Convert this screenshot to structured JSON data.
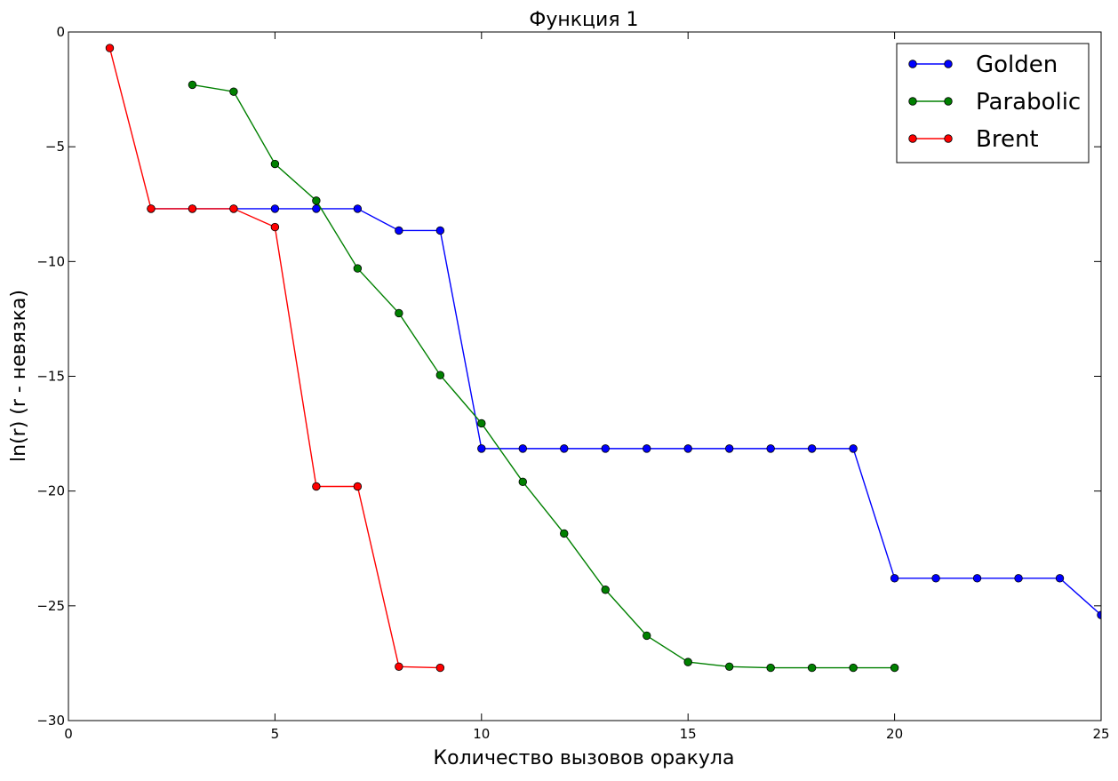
{
  "chart_data": {
    "type": "line",
    "title": "Функция 1",
    "xlabel": "Количество вызовов оракула",
    "ylabel": "ln(r) (r - невязка)",
    "xlim": [
      0,
      25
    ],
    "ylim": [
      -30,
      0
    ],
    "xticks": [
      0,
      5,
      10,
      15,
      20,
      25
    ],
    "yticks": [
      0,
      -5,
      -10,
      -15,
      -20,
      -25,
      -30
    ],
    "xtick_labels": [
      "0",
      "5",
      "10",
      "15",
      "20",
      "25"
    ],
    "ytick_labels": [
      "0",
      "−5",
      "−10",
      "−15",
      "−20",
      "−25",
      "−30"
    ],
    "grid": false,
    "legend_position": "top-right",
    "series": [
      {
        "name": "Golden",
        "color": "#0000ff",
        "marker": "circle",
        "x": [
          2,
          3,
          4,
          5,
          6,
          7,
          8,
          9,
          10,
          11,
          12,
          13,
          14,
          15,
          16,
          17,
          18,
          19,
          20,
          21,
          22,
          23,
          24,
          25
        ],
        "y": [
          -7.7,
          -7.7,
          -7.7,
          -7.7,
          -7.7,
          -7.7,
          -8.65,
          -8.65,
          -18.15,
          -18.15,
          -18.15,
          -18.15,
          -18.15,
          -18.15,
          -18.15,
          -18.15,
          -18.15,
          -18.15,
          -23.8,
          -23.8,
          -23.8,
          -23.8,
          -23.8,
          -25.4
        ]
      },
      {
        "name": "Parabolic",
        "color": "#008000",
        "marker": "circle",
        "x": [
          3,
          4,
          5,
          6,
          7,
          8,
          9,
          10,
          11,
          12,
          13,
          14,
          15,
          16,
          17,
          18,
          19,
          20
        ],
        "y": [
          -2.3,
          -2.6,
          -5.75,
          -7.35,
          -10.3,
          -12.25,
          -14.95,
          -17.05,
          -19.6,
          -21.85,
          -24.3,
          -26.3,
          -27.45,
          -27.65,
          -27.7,
          -27.7,
          -27.7,
          -27.7
        ]
      },
      {
        "name": "Brent",
        "color": "#ff0000",
        "marker": "circle",
        "x": [
          1,
          2,
          3,
          4,
          5,
          6,
          7,
          8,
          9
        ],
        "y": [
          -0.7,
          -7.7,
          -7.7,
          -7.7,
          -8.5,
          -19.8,
          -19.8,
          -27.65,
          -27.7
        ]
      }
    ]
  }
}
